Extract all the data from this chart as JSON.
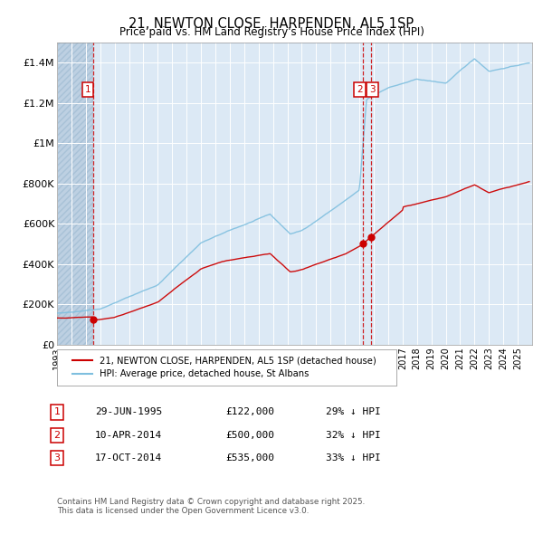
{
  "title": "21, NEWTON CLOSE, HARPENDEN, AL5 1SP",
  "subtitle": "Price paid vs. HM Land Registry's House Price Index (HPI)",
  "ylim": [
    0,
    1500000
  ],
  "yticks": [
    0,
    200000,
    400000,
    600000,
    800000,
    1000000,
    1200000,
    1400000
  ],
  "ytick_labels": [
    "£0",
    "£200K",
    "£400K",
    "£600K",
    "£800K",
    "£1M",
    "£1.2M",
    "£1.4M"
  ],
  "background_color": "#ffffff",
  "plot_bg_color": "#dce9f5",
  "hatch_color": "#bdd0e2",
  "grid_color": "#ffffff",
  "sale_dates_num": [
    1995.49,
    2014.27,
    2014.79
  ],
  "sale_prices": [
    122000,
    500000,
    535000
  ],
  "sale_labels": [
    "1",
    "2",
    "3"
  ],
  "sale_date_strings": [
    "29-JUN-1995",
    "10-APR-2014",
    "17-OCT-2014"
  ],
  "sale_price_strings": [
    "£122,000",
    "£500,000",
    "£535,000"
  ],
  "sale_hpi_strings": [
    "29% ↓ HPI",
    "32% ↓ HPI",
    "33% ↓ HPI"
  ],
  "red_line_color": "#cc0000",
  "blue_line_color": "#7fbfdf",
  "vline_color": "#cc0000",
  "legend_label_red": "21, NEWTON CLOSE, HARPENDEN, AL5 1SP (detached house)",
  "legend_label_blue": "HPI: Average price, detached house, St Albans",
  "footnote": "Contains HM Land Registry data © Crown copyright and database right 2025.\nThis data is licensed under the Open Government Licence v3.0.",
  "xmin": 1993,
  "xmax": 2026,
  "xticks": [
    1993,
    1994,
    1995,
    1996,
    1997,
    1998,
    1999,
    2000,
    2001,
    2002,
    2003,
    2004,
    2005,
    2006,
    2007,
    2008,
    2009,
    2010,
    2011,
    2012,
    2013,
    2014,
    2015,
    2016,
    2017,
    2018,
    2019,
    2020,
    2021,
    2022,
    2023,
    2024,
    2025
  ]
}
